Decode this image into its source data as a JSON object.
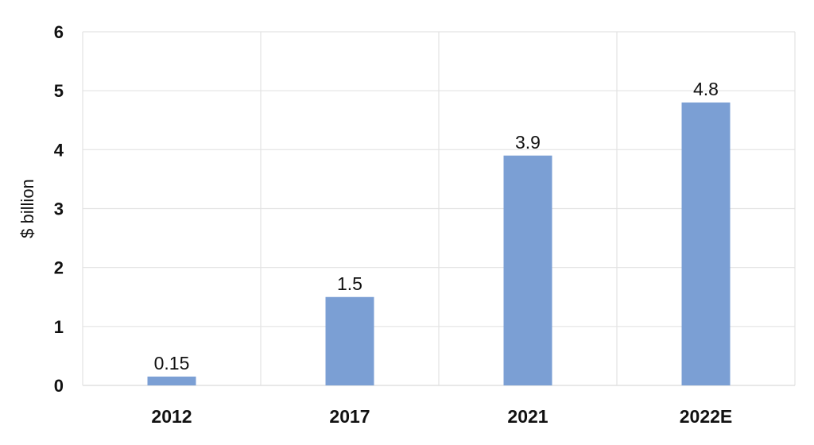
{
  "chart_data": {
    "type": "bar",
    "categories": [
      "2012",
      "2017",
      "2021",
      "2022E"
    ],
    "values": [
      0.15,
      1.5,
      3.9,
      4.8
    ],
    "value_labels": [
      "0.15",
      "1.5",
      "3.9",
      "4.8"
    ],
    "title": "",
    "xlabel": "",
    "ylabel": "$ billion",
    "ylim": [
      0,
      6
    ],
    "yticks": [
      0,
      1,
      2,
      3,
      4,
      5,
      6
    ],
    "grid": true,
    "bar_color": "#7b9fd4"
  }
}
